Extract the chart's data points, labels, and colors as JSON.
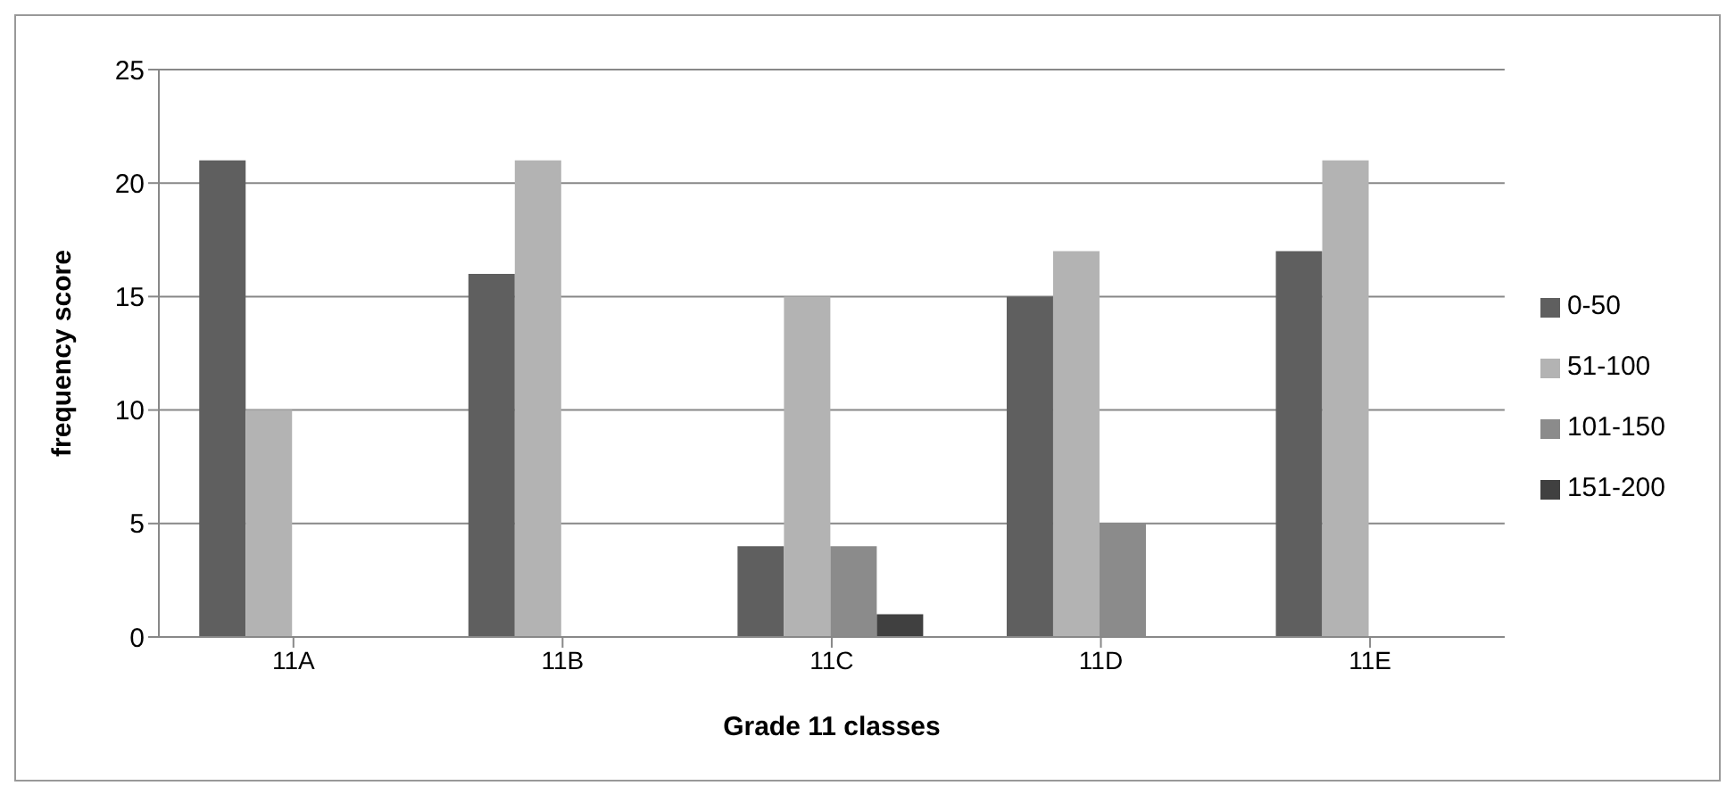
{
  "chart_data": {
    "type": "bar",
    "xlabel": "Grade 11 classes",
    "ylabel": "frequency score",
    "categories": [
      "11A",
      "11B",
      "11C",
      "11D",
      "11E"
    ],
    "series": [
      {
        "name": "0-50",
        "color": "#5f5f5f",
        "values": [
          21,
          16,
          4,
          15,
          17
        ]
      },
      {
        "name": "51-100",
        "color": "#b3b3b3",
        "values": [
          10,
          21,
          15,
          17,
          21
        ]
      },
      {
        "name": "101-150",
        "color": "#8b8b8b",
        "values": [
          0,
          0,
          4,
          5,
          0
        ]
      },
      {
        "name": "151-200",
        "color": "#404040",
        "values": [
          0,
          0,
          1,
          0,
          0
        ]
      }
    ],
    "ylim": [
      0,
      25
    ],
    "yticks": [
      0,
      5,
      10,
      15,
      20,
      25
    ],
    "grid": "y",
    "legend": "right"
  }
}
